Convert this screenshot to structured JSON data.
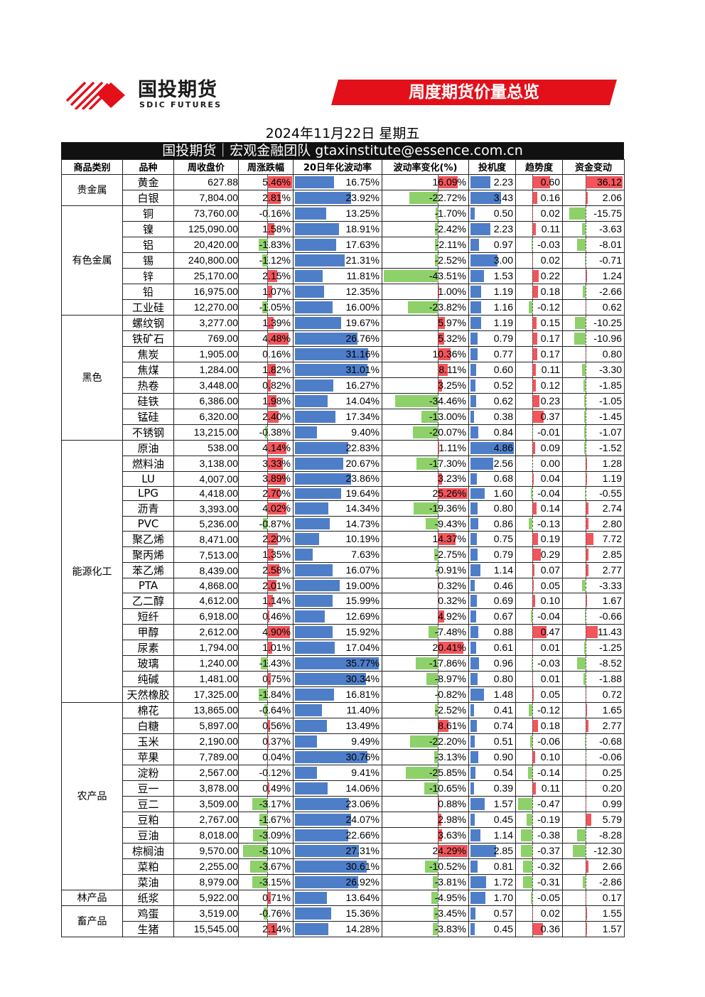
{
  "brand": {
    "name_cn": "国投期货",
    "name_en": "SDIC FUTURES"
  },
  "banner": {
    "title": "周度期货价量总览",
    "color": "#e3101a"
  },
  "date_line": "2024年11月22日 星期五",
  "subtitle": "国投期货｜宏观金融团队 gtaxinstitute@essence.com.cn",
  "colors": {
    "positive": "#f2555b",
    "negative": "#8ed16a",
    "volatility": "#4f7ec9",
    "dark": "#111111"
  },
  "headers": [
    "商品类别",
    "品种",
    "周收盘价",
    "周涨跌幅",
    "20日年化波动率",
    "波动率变化(%)",
    "投机度",
    "趋势度",
    "资金变动"
  ],
  "groups": [
    {
      "category": "贵金属",
      "rows": [
        {
          "name": "黄金",
          "close": "627.88",
          "chg": "5.46%",
          "vol": "16.75%",
          "volchg": "16.09%",
          "spec": "2.23",
          "trend": "0.60",
          "flow": "36.12"
        },
        {
          "name": "白银",
          "close": "7,804.00",
          "chg": "2.81%",
          "vol": "23.92%",
          "volchg": "-22.72%",
          "spec": "3.43",
          "trend": "0.16",
          "flow": "2.06"
        }
      ]
    },
    {
      "category": "有色金属",
      "rows": [
        {
          "name": "铜",
          "close": "73,760.00",
          "chg": "-0.16%",
          "vol": "13.25%",
          "volchg": "-1.70%",
          "spec": "0.50",
          "trend": "0.02",
          "flow": "-15.75"
        },
        {
          "name": "镍",
          "close": "125,090.00",
          "chg": "1.58%",
          "vol": "18.91%",
          "volchg": "-2.42%",
          "spec": "2.23",
          "trend": "0.11",
          "flow": "-3.63"
        },
        {
          "name": "铝",
          "close": "20,420.00",
          "chg": "-1.83%",
          "vol": "17.63%",
          "volchg": "-2.11%",
          "spec": "0.97",
          "trend": "-0.03",
          "flow": "-8.01"
        },
        {
          "name": "锡",
          "close": "240,800.00",
          "chg": "-1.12%",
          "vol": "21.31%",
          "volchg": "-2.52%",
          "spec": "3.00",
          "trend": "0.02",
          "flow": "-0.71"
        },
        {
          "name": "锌",
          "close": "25,170.00",
          "chg": "2.15%",
          "vol": "11.81%",
          "volchg": "-43.51%",
          "spec": "1.53",
          "trend": "0.22",
          "flow": "1.24"
        },
        {
          "name": "铅",
          "close": "16,975.00",
          "chg": "1.07%",
          "vol": "12.35%",
          "volchg": "1.00%",
          "spec": "1.19",
          "trend": "0.18",
          "flow": "-2.66"
        },
        {
          "name": "工业硅",
          "close": "12,270.00",
          "chg": "-1.05%",
          "vol": "16.00%",
          "volchg": "-23.82%",
          "spec": "1.16",
          "trend": "-0.12",
          "flow": "0.62"
        }
      ]
    },
    {
      "category": "黑色",
      "rows": [
        {
          "name": "螺纹钢",
          "close": "3,277.00",
          "chg": "1.39%",
          "vol": "19.67%",
          "volchg": "5.97%",
          "spec": "1.19",
          "trend": "0.15",
          "flow": "-10.25"
        },
        {
          "name": "铁矿石",
          "close": "769.00",
          "chg": "4.48%",
          "vol": "26.76%",
          "volchg": "5.32%",
          "spec": "0.79",
          "trend": "0.17",
          "flow": "-10.96"
        },
        {
          "name": "焦炭",
          "close": "1,905.00",
          "chg": "0.16%",
          "vol": "31.16%",
          "volchg": "10.36%",
          "spec": "0.77",
          "trend": "0.17",
          "flow": "0.80"
        },
        {
          "name": "焦煤",
          "close": "1,284.00",
          "chg": "1.82%",
          "vol": "31.01%",
          "volchg": "8.11%",
          "spec": "0.60",
          "trend": "0.11",
          "flow": "-3.30"
        },
        {
          "name": "热卷",
          "close": "3,448.00",
          "chg": "0.82%",
          "vol": "16.27%",
          "volchg": "3.25%",
          "spec": "0.52",
          "trend": "0.12",
          "flow": "-1.85"
        },
        {
          "name": "硅铁",
          "close": "6,386.00",
          "chg": "1.98%",
          "vol": "14.04%",
          "volchg": "-34.46%",
          "spec": "0.62",
          "trend": "0.23",
          "flow": "-1.05"
        },
        {
          "name": "锰硅",
          "close": "6,320.00",
          "chg": "2.40%",
          "vol": "17.34%",
          "volchg": "-13.00%",
          "spec": "0.38",
          "trend": "0.37",
          "flow": "-1.45"
        },
        {
          "name": "不锈钢",
          "close": "13,215.00",
          "chg": "-0.38%",
          "vol": "9.40%",
          "volchg": "-20.07%",
          "spec": "0.84",
          "trend": "-0.01",
          "flow": "-1.07"
        }
      ]
    },
    {
      "category": "能源化工",
      "rows": [
        {
          "name": "原油",
          "close": "538.00",
          "chg": "4.14%",
          "vol": "22.83%",
          "volchg": "1.11%",
          "spec": "4.86",
          "trend": "0.09",
          "flow": "-1.52"
        },
        {
          "name": "燃料油",
          "close": "3,138.00",
          "chg": "3.33%",
          "vol": "20.67%",
          "volchg": "-17.30%",
          "spec": "2.56",
          "trend": "0.00",
          "flow": "1.28"
        },
        {
          "name": "LU",
          "close": "4,007.00",
          "chg": "3.89%",
          "vol": "23.86%",
          "volchg": "3.23%",
          "spec": "0.68",
          "trend": "0.04",
          "flow": "1.19"
        },
        {
          "name": "LPG",
          "close": "4,418.00",
          "chg": "2.70%",
          "vol": "19.64%",
          "volchg": "25.26%",
          "spec": "1.60",
          "trend": "-0.04",
          "flow": "-0.55"
        },
        {
          "name": "沥青",
          "close": "3,393.00",
          "chg": "4.02%",
          "vol": "14.34%",
          "volchg": "-19.36%",
          "spec": "0.80",
          "trend": "0.14",
          "flow": "2.74"
        },
        {
          "name": "PVC",
          "close": "5,236.00",
          "chg": "-0.87%",
          "vol": "14.73%",
          "volchg": "-9.43%",
          "spec": "0.86",
          "trend": "-0.13",
          "flow": "2.80"
        },
        {
          "name": "聚乙烯",
          "close": "8,471.00",
          "chg": "2.20%",
          "vol": "10.19%",
          "volchg": "14.37%",
          "spec": "0.75",
          "trend": "0.19",
          "flow": "7.72"
        },
        {
          "name": "聚丙烯",
          "close": "7,513.00",
          "chg": "1.35%",
          "vol": "7.63%",
          "volchg": "-2.75%",
          "spec": "0.79",
          "trend": "0.29",
          "flow": "2.85"
        },
        {
          "name": "苯乙烯",
          "close": "8,439.00",
          "chg": "2.58%",
          "vol": "16.07%",
          "volchg": "-0.91%",
          "spec": "1.14",
          "trend": "0.07",
          "flow": "2.77"
        },
        {
          "name": "PTA",
          "close": "4,868.00",
          "chg": "2.01%",
          "vol": "19.00%",
          "volchg": "0.32%",
          "spec": "0.46",
          "trend": "0.05",
          "flow": "-3.33"
        },
        {
          "name": "乙二醇",
          "close": "4,612.00",
          "chg": "1.14%",
          "vol": "15.99%",
          "volchg": "0.32%",
          "spec": "0.69",
          "trend": "0.10",
          "flow": "1.67"
        },
        {
          "name": "短纤",
          "close": "6,918.00",
          "chg": "0.46%",
          "vol": "12.69%",
          "volchg": "4.92%",
          "spec": "0.67",
          "trend": "-0.04",
          "flow": "-0.66"
        },
        {
          "name": "甲醇",
          "close": "2,612.00",
          "chg": "4.90%",
          "vol": "15.92%",
          "volchg": "-7.48%",
          "spec": "0.88",
          "trend": "0.47",
          "flow": "11.43"
        },
        {
          "name": "尿素",
          "close": "1,794.00",
          "chg": "1.01%",
          "vol": "17.04%",
          "volchg": "20.41%",
          "spec": "0.61",
          "trend": "0.01",
          "flow": "-1.25"
        },
        {
          "name": "玻璃",
          "close": "1,240.00",
          "chg": "-1.43%",
          "vol": "35.77%",
          "volchg": "-17.86%",
          "spec": "0.96",
          "trend": "-0.03",
          "flow": "-8.52"
        },
        {
          "name": "纯碱",
          "close": "1,481.00",
          "chg": "0.75%",
          "vol": "30.34%",
          "volchg": "-8.97%",
          "spec": "0.80",
          "trend": "0.01",
          "flow": "-1.88"
        },
        {
          "name": "天然橡胶",
          "close": "17,325.00",
          "chg": "-1.84%",
          "vol": "16.81%",
          "volchg": "-0.82%",
          "spec": "1.48",
          "trend": "0.05",
          "flow": "0.72"
        }
      ]
    },
    {
      "category": "农产品",
      "rows": [
        {
          "name": "棉花",
          "close": "13,865.00",
          "chg": "-0.64%",
          "vol": "11.40%",
          "volchg": "-2.52%",
          "spec": "0.41",
          "trend": "-0.12",
          "flow": "1.65"
        },
        {
          "name": "白糖",
          "close": "5,897.00",
          "chg": "0.56%",
          "vol": "13.49%",
          "volchg": "8.61%",
          "spec": "0.74",
          "trend": "0.18",
          "flow": "2.77"
        },
        {
          "name": "玉米",
          "close": "2,190.00",
          "chg": "0.37%",
          "vol": "9.49%",
          "volchg": "-22.20%",
          "spec": "0.51",
          "trend": "-0.06",
          "flow": "-0.68"
        },
        {
          "name": "苹果",
          "close": "7,789.00",
          "chg": "0.04%",
          "vol": "30.76%",
          "volchg": "-3.13%",
          "spec": "0.90",
          "trend": "0.10",
          "flow": "-0.06"
        },
        {
          "name": "淀粉",
          "close": "2,567.00",
          "chg": "-0.12%",
          "vol": "9.41%",
          "volchg": "-25.85%",
          "spec": "0.54",
          "trend": "-0.14",
          "flow": "0.25"
        },
        {
          "name": "豆一",
          "close": "3,878.00",
          "chg": "0.49%",
          "vol": "14.06%",
          "volchg": "-10.65%",
          "spec": "0.39",
          "trend": "0.11",
          "flow": "0.20"
        },
        {
          "name": "豆二",
          "close": "3,509.00",
          "chg": "-3.17%",
          "vol": "23.06%",
          "volchg": "0.88%",
          "spec": "1.57",
          "trend": "-0.47",
          "flow": "0.99"
        },
        {
          "name": "豆粕",
          "close": "2,767.00",
          "chg": "-1.67%",
          "vol": "24.07%",
          "volchg": "2.98%",
          "spec": "0.45",
          "trend": "-0.19",
          "flow": "5.79"
        },
        {
          "name": "豆油",
          "close": "8,018.00",
          "chg": "-3.09%",
          "vol": "22.66%",
          "volchg": "3.63%",
          "spec": "1.14",
          "trend": "-0.38",
          "flow": "-8.28"
        },
        {
          "name": "棕榈油",
          "close": "9,570.00",
          "chg": "-5.10%",
          "vol": "27.31%",
          "volchg": "24.29%",
          "spec": "2.85",
          "trend": "-0.37",
          "flow": "-12.30"
        },
        {
          "name": "菜粕",
          "close": "2,255.00",
          "chg": "-3.67%",
          "vol": "30.61%",
          "volchg": "-10.52%",
          "spec": "0.81",
          "trend": "-0.32",
          "flow": "2.66"
        },
        {
          "name": "菜油",
          "close": "8,979.00",
          "chg": "-3.15%",
          "vol": "26.92%",
          "volchg": "-3.81%",
          "spec": "1.72",
          "trend": "-0.31",
          "flow": "-2.86"
        }
      ]
    },
    {
      "category": "林产品",
      "rows": [
        {
          "name": "纸浆",
          "close": "5,922.00",
          "chg": "0.71%",
          "vol": "13.64%",
          "volchg": "-4.95%",
          "spec": "1.70",
          "trend": "-0.05",
          "flow": "0.17"
        }
      ]
    },
    {
      "category": "畜产品",
      "rows": [
        {
          "name": "鸡蛋",
          "close": "3,519.00",
          "chg": "-0.76%",
          "vol": "15.36%",
          "volchg": "-3.45%",
          "spec": "0.57",
          "trend": "0.02",
          "flow": "1.55"
        },
        {
          "name": "生猪",
          "close": "15,545.00",
          "chg": "2.14%",
          "vol": "14.28%",
          "volchg": "-3.83%",
          "spec": "0.45",
          "trend": "0.36",
          "flow": "1.57"
        }
      ]
    }
  ]
}
